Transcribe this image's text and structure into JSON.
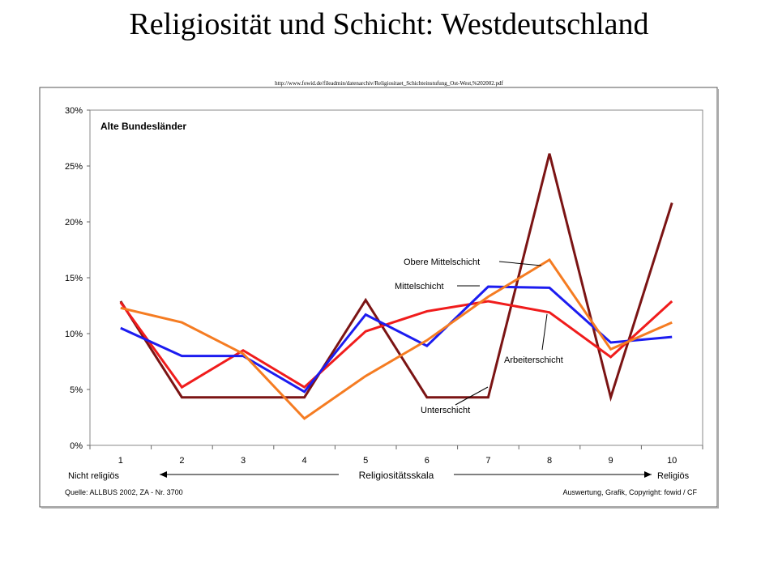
{
  "slide": {
    "title": "Religiosität und Schicht: Westdeutschland",
    "source_url": "http://www.fowid.de/fileadmin/datenarchiv/Religiositaet_Schichteinstufung_Ost-West,%202002.pdf"
  },
  "chart_data": {
    "type": "line",
    "title": "Alte Bundesländer",
    "xlabel": "Religiositätsskala",
    "x_left_label": "Nicht religiös",
    "x_right_label": "Religiös",
    "ylabel": "",
    "ylim": [
      0,
      30
    ],
    "yticks": [
      "0%",
      "5%",
      "10%",
      "15%",
      "20%",
      "25%",
      "30%"
    ],
    "categories": [
      "1",
      "2",
      "3",
      "4",
      "5",
      "6",
      "7",
      "8",
      "9",
      "10"
    ],
    "grid": false,
    "legend": "inline labels",
    "source": "Quelle: ALLBUS 2002, ZA - Nr. 3700",
    "credit": "Auswertung, Grafik, Copyright: fowid / CF",
    "series": [
      {
        "name": "Unterschicht",
        "color": "#7b1414",
        "values": [
          12.9,
          4.3,
          4.3,
          4.3,
          13.0,
          4.3,
          4.3,
          26.1,
          4.3,
          21.7
        ]
      },
      {
        "name": "Arbeiterschicht",
        "color": "#f01c1c",
        "values": [
          12.8,
          5.2,
          8.5,
          5.2,
          10.2,
          12.0,
          12.9,
          11.9,
          7.9,
          12.9
        ]
      },
      {
        "name": "Mittelschicht",
        "color": "#1c1cf0",
        "values": [
          10.5,
          8.0,
          8.0,
          4.8,
          11.7,
          8.9,
          14.2,
          14.1,
          9.2,
          9.7
        ]
      },
      {
        "name": "Obere Mittelschicht",
        "color": "#f57c22",
        "values": [
          12.3,
          11.0,
          8.2,
          2.4,
          6.2,
          9.4,
          13.3,
          16.6,
          8.6,
          11.0
        ]
      }
    ]
  }
}
